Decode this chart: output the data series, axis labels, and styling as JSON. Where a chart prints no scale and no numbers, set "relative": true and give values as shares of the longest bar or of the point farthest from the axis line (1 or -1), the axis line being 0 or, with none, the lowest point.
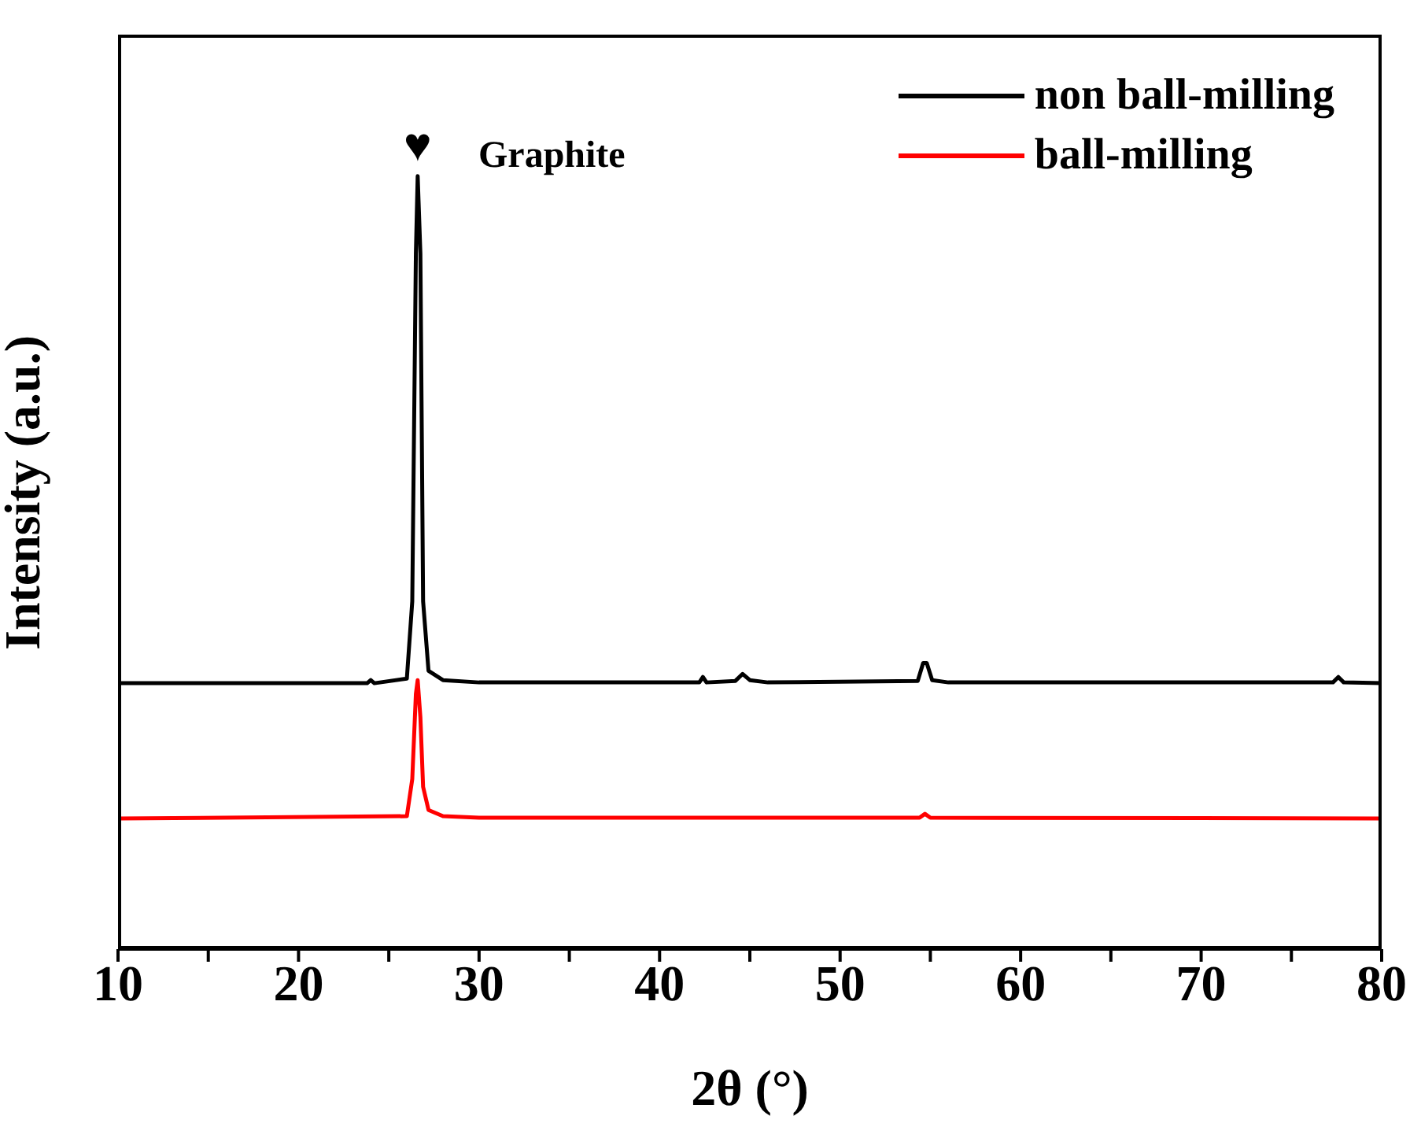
{
  "chart_data": {
    "type": "line",
    "xlabel": "2θ (°)",
    "ylabel": "Intensity (a.u.)",
    "relative": true,
    "legend": "top right",
    "grid": false,
    "marker": "none",
    "line_style": "solid",
    "xlim": [
      10,
      80
    ],
    "xticks": [
      10,
      {
        "value": 15,
        "label": null
      },
      20,
      {
        "value": 25,
        "label": null
      },
      30,
      {
        "value": 35,
        "label": null
      },
      40,
      {
        "value": 45,
        "label": null
      },
      50,
      {
        "value": 55,
        "label": null
      },
      60,
      {
        "value": 65,
        "label": null
      },
      70,
      {
        "value": 75,
        "label": null
      },
      80
    ],
    "annotations": [
      {
        "text": "♥",
        "x": 26.6,
        "y": 1
      },
      "Graphite"
    ],
    "series": [
      {
        "name": "non ball-milling",
        "color": "#000000",
        "x": [
          10,
          23.8,
          24,
          24.2,
          26,
          26.3,
          26.5,
          26.6,
          26.75,
          26.9,
          27.2,
          28,
          30,
          42.2,
          42.4,
          42.6,
          44.2,
          44.6,
          45,
          46,
          54.3,
          54.6,
          54.8,
          55.1,
          56,
          77.3,
          77.6,
          77.9,
          80
        ],
        "values": [
          0.344,
          0.344,
          0.348,
          0.344,
          0.35,
          0.45,
          0.9,
          1,
          0.9,
          0.45,
          0.36,
          0.348,
          0.345,
          0.345,
          0.352,
          0.345,
          0.347,
          0.356,
          0.348,
          0.345,
          0.347,
          0.37,
          0.37,
          0.348,
          0.345,
          0.345,
          0.352,
          0.345,
          0.344
        ]
      },
      {
        "name": "ball-milling",
        "color": "#ff0000",
        "x": [
          10,
          26,
          26.3,
          26.5,
          26.6,
          26.75,
          26.9,
          27.2,
          28,
          30,
          54.4,
          54.7,
          55,
          80
        ],
        "values": [
          0.169,
          0.172,
          0.22,
          0.33,
          0.348,
          0.3,
          0.21,
          0.18,
          0.172,
          0.17,
          0.17,
          0.175,
          0.17,
          0.169
        ]
      }
    ]
  }
}
